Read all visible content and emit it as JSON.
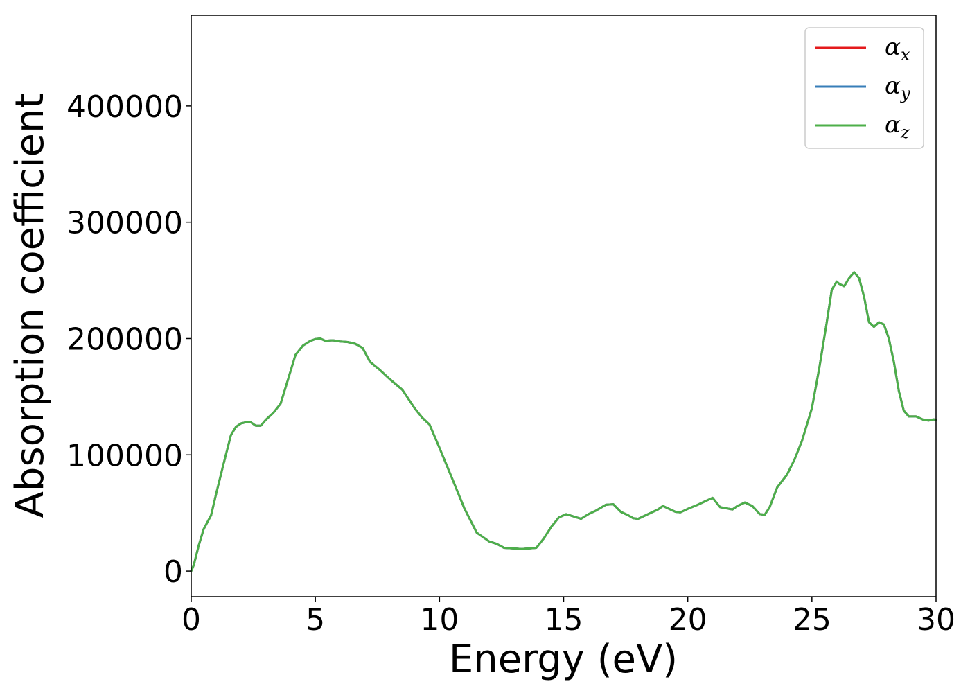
{
  "chart_data": {
    "type": "line",
    "title": "",
    "xlabel": "Energy (eV)",
    "ylabel": "Absorption coefficient",
    "xlim": [
      0,
      30
    ],
    "ylim": [
      -22000,
      478000
    ],
    "x_ticks": [
      "0",
      "5",
      "10",
      "15",
      "20",
      "25",
      "30"
    ],
    "y_ticks": [
      "0",
      "100000",
      "200000",
      "300000",
      "400000"
    ],
    "grid": false,
    "legend_position": "top-right",
    "legend": [
      {
        "symbol": "α",
        "subscript": "x",
        "color": "#e41a1c"
      },
      {
        "symbol": "α",
        "subscript": "y",
        "color": "#377eb8"
      },
      {
        "symbol": "α",
        "subscript": "z",
        "color": "#4daf4a"
      }
    ],
    "series": [
      {
        "legend_index": 0,
        "color": "#e41a1c",
        "x": [
          0,
          0.1,
          0.3,
          0.5,
          0.8,
          1.0,
          1.3,
          1.6,
          1.8,
          2.0,
          2.2,
          2.4,
          2.6,
          2.8,
          3.0,
          3.3,
          3.6,
          3.9,
          4.2,
          4.5,
          4.8,
          5.0,
          5.2,
          5.4,
          5.7,
          6.0,
          6.3,
          6.6,
          6.9,
          7.2,
          7.6,
          8.0,
          8.5,
          9.0,
          9.3,
          9.6,
          10.0,
          10.5,
          11.0,
          11.5,
          12.0,
          12.3,
          12.6,
          13.0,
          13.3,
          13.6,
          13.9,
          14.2,
          14.5,
          14.8,
          15.1,
          15.4,
          15.7,
          16.0,
          16.3,
          16.7,
          17.0,
          17.3,
          17.6,
          17.8,
          18.0,
          18.4,
          18.8,
          19.0,
          19.2,
          19.5,
          19.7,
          20.0,
          20.4,
          20.8,
          21.0,
          21.3,
          21.8,
          22.0,
          22.3,
          22.6,
          22.9,
          23.1,
          23.3,
          23.6,
          24.0,
          24.3,
          24.6,
          25.0,
          25.3,
          25.6,
          25.8,
          26.0,
          26.1,
          26.3,
          26.5,
          26.7,
          26.9,
          27.1,
          27.3,
          27.5,
          27.7,
          27.9,
          28.1,
          28.3,
          28.5,
          28.7,
          28.9,
          29.2,
          29.5,
          29.7,
          29.9,
          30.0
        ],
        "y": [
          0,
          5000,
          22000,
          36000,
          48000,
          66000,
          92000,
          117000,
          124000,
          127000,
          128000,
          128000,
          125000,
          125000,
          130000,
          136000,
          144000,
          165000,
          186000,
          194000,
          198000,
          199500,
          200000,
          198000,
          198500,
          197500,
          197000,
          195500,
          192000,
          180000,
          173000,
          165000,
          156000,
          140000,
          132000,
          126000,
          106000,
          80000,
          54000,
          33000,
          25500,
          23500,
          20000,
          19500,
          19000,
          19500,
          20000,
          28000,
          38000,
          46000,
          49000,
          47000,
          45000,
          49000,
          52000,
          57000,
          57500,
          51000,
          48000,
          45500,
          45000,
          49000,
          53000,
          56000,
          54000,
          51000,
          50500,
          53500,
          57000,
          61000,
          63000,
          55000,
          53000,
          56000,
          59000,
          56000,
          49000,
          48500,
          55000,
          72000,
          83000,
          96000,
          112000,
          140000,
          175000,
          214000,
          242000,
          249000,
          247000,
          245000,
          252000,
          257000,
          252000,
          236000,
          214000,
          210000,
          214000,
          212000,
          200000,
          180000,
          155000,
          138000,
          133000,
          133000,
          130000,
          129500,
          130500,
          130000
        ]
      },
      {
        "legend_index": 1,
        "color": "#377eb8",
        "x": [
          0,
          0.1,
          0.3,
          0.5,
          0.8,
          1.0,
          1.3,
          1.6,
          1.8,
          2.0,
          2.2,
          2.4,
          2.6,
          2.8,
          3.0,
          3.3,
          3.6,
          3.9,
          4.2,
          4.5,
          4.8,
          5.0,
          5.2,
          5.4,
          5.7,
          6.0,
          6.3,
          6.6,
          6.9,
          7.2,
          7.6,
          8.0,
          8.5,
          9.0,
          9.3,
          9.6,
          10.0,
          10.5,
          11.0,
          11.5,
          12.0,
          12.3,
          12.6,
          13.0,
          13.3,
          13.6,
          13.9,
          14.2,
          14.5,
          14.8,
          15.1,
          15.4,
          15.7,
          16.0,
          16.3,
          16.7,
          17.0,
          17.3,
          17.6,
          17.8,
          18.0,
          18.4,
          18.8,
          19.0,
          19.2,
          19.5,
          19.7,
          20.0,
          20.4,
          20.8,
          21.0,
          21.3,
          21.8,
          22.0,
          22.3,
          22.6,
          22.9,
          23.1,
          23.3,
          23.6,
          24.0,
          24.3,
          24.6,
          25.0,
          25.3,
          25.6,
          25.8,
          26.0,
          26.1,
          26.3,
          26.5,
          26.7,
          26.9,
          27.1,
          27.3,
          27.5,
          27.7,
          27.9,
          28.1,
          28.3,
          28.5,
          28.7,
          28.9,
          29.2,
          29.5,
          29.7,
          29.9,
          30.0
        ],
        "y": [
          0,
          5000,
          22000,
          36000,
          48000,
          66000,
          92000,
          117000,
          124000,
          127000,
          128000,
          128000,
          125000,
          125000,
          130000,
          136000,
          144000,
          165000,
          186000,
          194000,
          198000,
          199500,
          200000,
          198000,
          198500,
          197500,
          197000,
          195500,
          192000,
          180000,
          173000,
          165000,
          156000,
          140000,
          132000,
          126000,
          106000,
          80000,
          54000,
          33000,
          25500,
          23500,
          20000,
          19500,
          19000,
          19500,
          20000,
          28000,
          38000,
          46000,
          49000,
          47000,
          45000,
          49000,
          52000,
          57000,
          57500,
          51000,
          48000,
          45500,
          45000,
          49000,
          53000,
          56000,
          54000,
          51000,
          50500,
          53500,
          57000,
          61000,
          63000,
          55000,
          53000,
          56000,
          59000,
          56000,
          49000,
          48500,
          55000,
          72000,
          83000,
          96000,
          112000,
          140000,
          175000,
          214000,
          242000,
          249000,
          247000,
          245000,
          252000,
          257000,
          252000,
          236000,
          214000,
          210000,
          214000,
          212000,
          200000,
          180000,
          155000,
          138000,
          133000,
          133000,
          130000,
          129500,
          130500,
          130000
        ]
      },
      {
        "legend_index": 2,
        "color": "#4daf4a",
        "x": [
          0,
          0.1,
          0.3,
          0.5,
          0.8,
          1.0,
          1.3,
          1.6,
          1.8,
          2.0,
          2.2,
          2.4,
          2.6,
          2.8,
          3.0,
          3.3,
          3.6,
          3.9,
          4.2,
          4.5,
          4.8,
          5.0,
          5.2,
          5.4,
          5.7,
          6.0,
          6.3,
          6.6,
          6.9,
          7.2,
          7.6,
          8.0,
          8.5,
          9.0,
          9.3,
          9.6,
          10.0,
          10.5,
          11.0,
          11.5,
          12.0,
          12.3,
          12.6,
          13.0,
          13.3,
          13.6,
          13.9,
          14.2,
          14.5,
          14.8,
          15.1,
          15.4,
          15.7,
          16.0,
          16.3,
          16.7,
          17.0,
          17.3,
          17.6,
          17.8,
          18.0,
          18.4,
          18.8,
          19.0,
          19.2,
          19.5,
          19.7,
          20.0,
          20.4,
          20.8,
          21.0,
          21.3,
          21.8,
          22.0,
          22.3,
          22.6,
          22.9,
          23.1,
          23.3,
          23.6,
          24.0,
          24.3,
          24.6,
          25.0,
          25.3,
          25.6,
          25.8,
          26.0,
          26.1,
          26.3,
          26.5,
          26.7,
          26.9,
          27.1,
          27.3,
          27.5,
          27.7,
          27.9,
          28.1,
          28.3,
          28.5,
          28.7,
          28.9,
          29.2,
          29.5,
          29.7,
          29.9,
          30.0
        ],
        "y": [
          0,
          5000,
          22000,
          36000,
          48000,
          66000,
          92000,
          117000,
          124000,
          127000,
          128000,
          128000,
          125000,
          125000,
          130000,
          136000,
          144000,
          165000,
          186000,
          194000,
          198000,
          199500,
          200000,
          198000,
          198500,
          197500,
          197000,
          195500,
          192000,
          180000,
          173000,
          165000,
          156000,
          140000,
          132000,
          126000,
          106000,
          80000,
          54000,
          33000,
          25500,
          23500,
          20000,
          19500,
          19000,
          19500,
          20000,
          28000,
          38000,
          46000,
          49000,
          47000,
          45000,
          49000,
          52000,
          57000,
          57500,
          51000,
          48000,
          45500,
          45000,
          49000,
          53000,
          56000,
          54000,
          51000,
          50500,
          53500,
          57000,
          61000,
          63000,
          55000,
          53000,
          56000,
          59000,
          56000,
          49000,
          48500,
          55000,
          72000,
          83000,
          96000,
          112000,
          140000,
          175000,
          214000,
          242000,
          249000,
          247000,
          245000,
          252000,
          257000,
          252000,
          236000,
          214000,
          210000,
          214000,
          212000,
          200000,
          180000,
          155000,
          138000,
          133000,
          133000,
          130000,
          129500,
          130500,
          130000
        ]
      }
    ]
  }
}
